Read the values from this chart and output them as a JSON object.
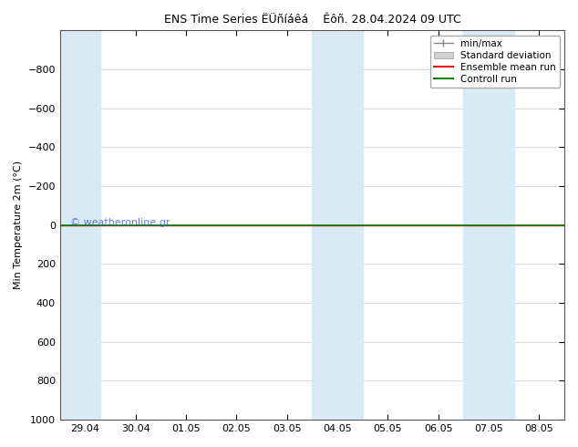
{
  "title_left": "ENS Time Series ËÜñíáêá",
  "title_right": "Êôñ. 28.04.2024 09 UTC",
  "ylabel": "Min Temperature 2m (°C)",
  "ylim": [
    -1000,
    1000
  ],
  "yticks": [
    -800,
    -600,
    -400,
    -200,
    0,
    200,
    400,
    600,
    800,
    1000
  ],
  "xtick_labels": [
    "29.04",
    "30.04",
    "01.05",
    "02.05",
    "03.05",
    "04.05",
    "05.05",
    "06.05",
    "07.05",
    "08.05"
  ],
  "xtick_positions": [
    0,
    1,
    2,
    3,
    4,
    5,
    6,
    7,
    8,
    9
  ],
  "shade_regions": [
    {
      "xmin": -0.5,
      "xmax": 0.3,
      "color": "#daeaf5"
    },
    {
      "xmin": 4.5,
      "xmax": 5.5,
      "color": "#daeaf5"
    },
    {
      "xmin": 7.5,
      "xmax": 8.5,
      "color": "#daeaf5"
    }
  ],
  "green_line_y": 0,
  "green_line_color": "#008000",
  "red_line_color": "#ff0000",
  "plot_bg_color": "#ffffff",
  "fig_bg_color": "#ffffff",
  "shade_color": "#daeaf5",
  "watermark": "© weatheronline.gr",
  "watermark_color": "#4169e1",
  "legend_items": [
    {
      "label": "min/max",
      "color": "#888888"
    },
    {
      "label": "Standard deviation",
      "color": "#cccccc"
    },
    {
      "label": "Ensemble mean run",
      "color": "#ff0000"
    },
    {
      "label": "Controll run",
      "color": "#008000"
    }
  ],
  "tick_fontsize": 8,
  "ylabel_fontsize": 8,
  "title_fontsize": 9,
  "legend_fontsize": 7.5
}
